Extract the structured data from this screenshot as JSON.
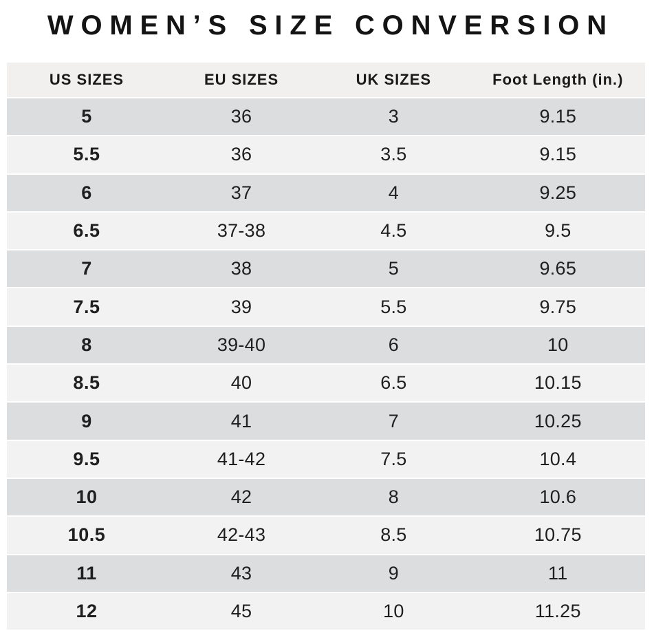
{
  "title": "WOMEN’S SIZE CONVERSION",
  "chart_data": {
    "type": "table",
    "title": "WOMEN’S SIZE CONVERSION",
    "columns": [
      "US SIZES",
      "EU SIZES",
      "UK SIZES",
      "Foot Length (in.)"
    ],
    "rows": [
      [
        "5",
        "36",
        "3",
        "9.15"
      ],
      [
        "5.5",
        "36",
        "3.5",
        "9.15"
      ],
      [
        "6",
        "37",
        "4",
        "9.25"
      ],
      [
        "6.5",
        "37-38",
        "4.5",
        "9.5"
      ],
      [
        "7",
        "38",
        "5",
        "9.65"
      ],
      [
        "7.5",
        "39",
        "5.5",
        "9.75"
      ],
      [
        "8",
        "39-40",
        "6",
        "10"
      ],
      [
        "8.5",
        "40",
        "6.5",
        "10.15"
      ],
      [
        "9",
        "41",
        "7",
        "10.25"
      ],
      [
        "9.5",
        "41-42",
        "7.5",
        "10.4"
      ],
      [
        "10",
        "42",
        "8",
        "10.6"
      ],
      [
        "10.5",
        "42-43",
        "8.5",
        "10.75"
      ],
      [
        "11",
        "43",
        "9",
        "11"
      ],
      [
        "12",
        "45",
        "10",
        "11.25"
      ]
    ],
    "layout_hints": {
      "row_striping": "alternating, first data row dark",
      "us_sizes_column_bold": true,
      "grid": "horizontal white separators only"
    }
  },
  "colors": {
    "header_bg": "#f1f0ef",
    "row_dark": "#dcddde",
    "row_light": "#f2f2f2",
    "separator": "#ffffff",
    "text": "#1d1d1d"
  }
}
